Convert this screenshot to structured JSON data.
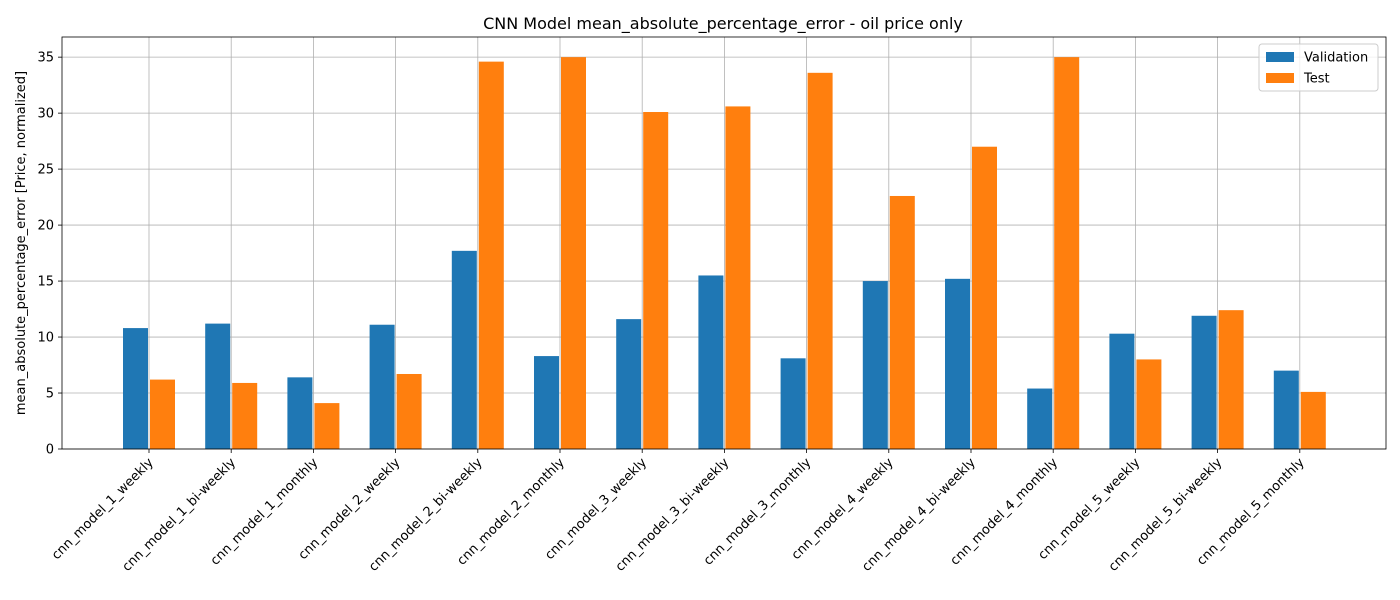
{
  "chart_data": {
    "type": "bar",
    "title": "CNN Model mean_absolute_percentage_error - oil price only",
    "xlabel": "",
    "ylabel": "mean_absolute_percentage_error [Price, normalized]",
    "ylim": [
      0,
      36.8
    ],
    "yticks": [
      0,
      5,
      10,
      15,
      20,
      25,
      30,
      35
    ],
    "grid": true,
    "legend_position": "upper-right",
    "categories": [
      "cnn_model_1_weekly",
      "cnn_model_1_bi-weekly",
      "cnn_model_1_monthly",
      "cnn_model_2_weekly",
      "cnn_model_2_bi-weekly",
      "cnn_model_2_monthly",
      "cnn_model_3_weekly",
      "cnn_model_3_bi-weekly",
      "cnn_model_3_monthly",
      "cnn_model_4_weekly",
      "cnn_model_4_bi-weekly",
      "cnn_model_4_monthly",
      "cnn_model_5_weekly",
      "cnn_model_5_bi-weekly",
      "cnn_model_5_monthly"
    ],
    "series": [
      {
        "name": "Validation",
        "color": "#1f77b4",
        "values": [
          10.8,
          11.2,
          6.4,
          11.1,
          17.7,
          8.3,
          11.6,
          15.5,
          8.1,
          15.0,
          15.2,
          5.4,
          10.3,
          11.9,
          7.0
        ]
      },
      {
        "name": "Test",
        "color": "#ff7f0e",
        "values": [
          6.2,
          5.9,
          4.1,
          6.7,
          34.6,
          35.0,
          30.1,
          30.6,
          33.6,
          22.6,
          27.0,
          35.0,
          8.0,
          12.4,
          5.1
        ]
      }
    ]
  }
}
